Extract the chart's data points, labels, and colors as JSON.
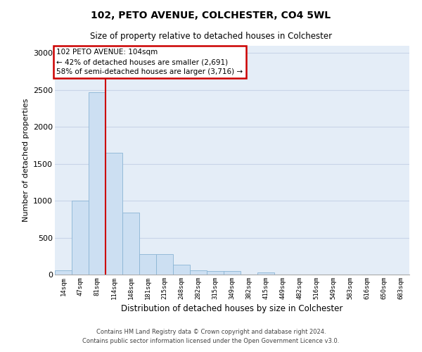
{
  "title": "102, PETO AVENUE, COLCHESTER, CO4 5WL",
  "subtitle": "Size of property relative to detached houses in Colchester",
  "xlabel": "Distribution of detached houses by size in Colchester",
  "ylabel": "Number of detached properties",
  "categories": [
    "14sqm",
    "47sqm",
    "81sqm",
    "114sqm",
    "148sqm",
    "181sqm",
    "215sqm",
    "248sqm",
    "282sqm",
    "315sqm",
    "349sqm",
    "382sqm",
    "415sqm",
    "449sqm",
    "482sqm",
    "516sqm",
    "549sqm",
    "583sqm",
    "616sqm",
    "650sqm",
    "683sqm"
  ],
  "values": [
    60,
    1000,
    2470,
    1650,
    840,
    280,
    280,
    130,
    60,
    50,
    50,
    0,
    30,
    0,
    0,
    0,
    0,
    0,
    0,
    0,
    0
  ],
  "bar_color": "#ccdff2",
  "bar_edge_color": "#8ab4d4",
  "vline_color": "#cc0000",
  "ann_line1": "102 PETO AVENUE: 104sqm",
  "ann_line2": "← 42% of detached houses are smaller (2,691)",
  "ann_line3": "58% of semi-detached houses are larger (3,716) →",
  "ann_box_fc": "#ffffff",
  "ann_box_ec": "#cc0000",
  "ylim_max": 3100,
  "yticks": [
    0,
    500,
    1000,
    1500,
    2000,
    2500,
    3000
  ],
  "grid_color": "#c8d4e8",
  "plot_bg": "#e4edf7",
  "footer1": "Contains HM Land Registry data © Crown copyright and database right 2024.",
  "footer2": "Contains public sector information licensed under the Open Government Licence v3.0."
}
